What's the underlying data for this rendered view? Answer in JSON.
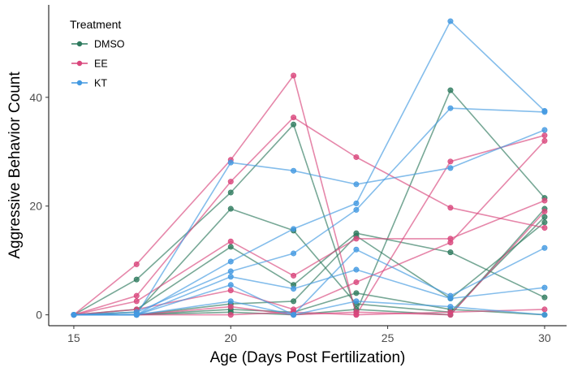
{
  "chart_data": {
    "type": "line",
    "xlabel": "Age (Days Post Fertilization)",
    "ylabel": "Aggressive Behavior Count",
    "xlim": [
      14.2,
      30.7
    ],
    "ylim": [
      -2,
      57
    ],
    "x_ticks": [
      15,
      20,
      25,
      30
    ],
    "y_ticks": [
      0,
      20,
      40
    ],
    "grid": false,
    "legend": {
      "title": "Treatment",
      "placement": "top-left",
      "entries": [
        "DMSO",
        "EE",
        "KT"
      ]
    },
    "colors": {
      "DMSO": "#2e7a5e",
      "EE": "#d9467c",
      "KT": "#4299e1"
    },
    "series": [
      {
        "group": "DMSO",
        "x": [
          15,
          17,
          20,
          22,
          24,
          27,
          30
        ],
        "y": [
          0,
          6.5,
          22.5,
          35,
          0.5,
          41.3,
          21.5
        ]
      },
      {
        "group": "DMSO",
        "x": [
          15,
          17,
          20,
          22,
          24,
          27,
          30
        ],
        "y": [
          0,
          0.5,
          19.5,
          15.5,
          2,
          0.5,
          18
        ]
      },
      {
        "group": "DMSO",
        "x": [
          15,
          17,
          20,
          22,
          24,
          27,
          30
        ],
        "y": [
          0,
          1,
          12.5,
          5.5,
          15,
          11.5,
          3.2
        ]
      },
      {
        "group": "DMSO",
        "x": [
          15,
          17,
          20,
          22,
          24,
          27,
          30
        ],
        "y": [
          0,
          0,
          2,
          2.5,
          14.5,
          3,
          17
        ]
      },
      {
        "group": "DMSO",
        "x": [
          15,
          17,
          20,
          22,
          24,
          27,
          30
        ],
        "y": [
          0,
          0,
          0.5,
          0,
          1,
          0,
          19.5
        ]
      },
      {
        "group": "DMSO",
        "x": [
          15,
          17,
          20,
          22,
          24,
          27,
          30
        ],
        "y": [
          0,
          0,
          1,
          0.5,
          4,
          1,
          0
        ]
      },
      {
        "group": "EE",
        "x": [
          15,
          17,
          20,
          22,
          24,
          27,
          30
        ],
        "y": [
          0,
          9.3,
          28.5,
          44,
          0,
          28.2,
          33
        ]
      },
      {
        "group": "EE",
        "x": [
          15,
          17,
          20,
          22,
          24,
          27,
          30
        ],
        "y": [
          0,
          3.5,
          24.5,
          36.3,
          29,
          19.7,
          16
        ]
      },
      {
        "group": "EE",
        "x": [
          15,
          17,
          20,
          22,
          24,
          27,
          30
        ],
        "y": [
          0,
          2.5,
          13.5,
          7.2,
          14,
          14,
          21
        ]
      },
      {
        "group": "EE",
        "x": [
          15,
          17,
          20,
          22,
          24,
          27,
          30
        ],
        "y": [
          0,
          1,
          4.5,
          1,
          6,
          13.3,
          32
        ]
      },
      {
        "group": "EE",
        "x": [
          15,
          17,
          20,
          22,
          24,
          27,
          30
        ],
        "y": [
          0,
          0,
          0,
          0.5,
          0,
          0.5,
          1
        ]
      },
      {
        "group": "EE",
        "x": [
          15,
          17,
          20,
          22,
          24,
          27,
          30
        ],
        "y": [
          0,
          0,
          1.5,
          0,
          0.5,
          0,
          19
        ]
      },
      {
        "group": "KT",
        "x": [
          15,
          17,
          20,
          22,
          24,
          27,
          30
        ],
        "y": [
          0,
          0,
          28,
          26.5,
          24,
          27,
          34
        ]
      },
      {
        "group": "KT",
        "x": [
          15,
          17,
          20,
          22,
          24,
          27,
          30
        ],
        "y": [
          0,
          0,
          9.8,
          15.8,
          20.5,
          54,
          37.5
        ]
      },
      {
        "group": "KT",
        "x": [
          15,
          17,
          20,
          22,
          24,
          27,
          30
        ],
        "y": [
          0,
          0.5,
          8,
          11.3,
          19.3,
          38,
          37.3
        ]
      },
      {
        "group": "KT",
        "x": [
          15,
          17,
          20,
          22,
          24,
          27,
          30
        ],
        "y": [
          0,
          0,
          5.5,
          0,
          12,
          3.5,
          12.3
        ]
      },
      {
        "group": "KT",
        "x": [
          15,
          17,
          20,
          22,
          24,
          27,
          30
        ],
        "y": [
          0,
          0,
          7,
          4.8,
          8.3,
          3,
          5
        ]
      },
      {
        "group": "KT",
        "x": [
          15,
          17,
          20,
          22,
          24,
          27,
          30
        ],
        "y": [
          0,
          0,
          2.5,
          0,
          2.5,
          1.5,
          0
        ]
      }
    ]
  }
}
